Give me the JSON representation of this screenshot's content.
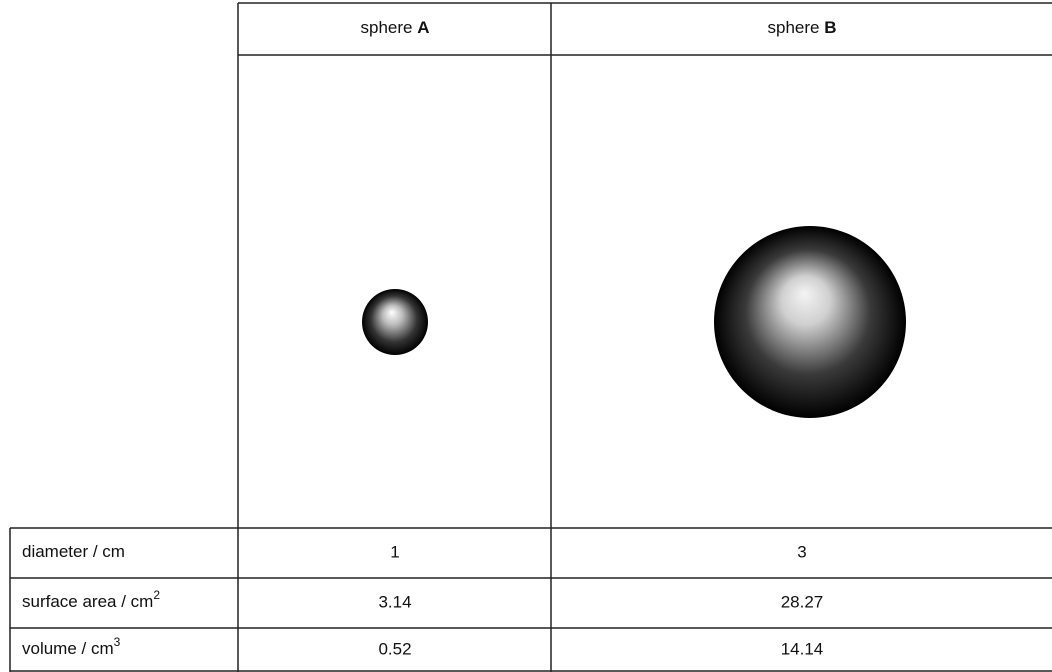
{
  "table": {
    "header": [
      {
        "prefix": "sphere ",
        "letter": "A"
      },
      {
        "prefix": "sphere ",
        "letter": "B"
      }
    ],
    "rows": [
      [
        {
          "text": "diameter / cm"
        },
        "1",
        "3"
      ],
      [
        {
          "text": "surface area / cm",
          "sup": "2"
        },
        "3.14",
        "28.27"
      ],
      [
        {
          "text": "volume / cm",
          "sup": "3"
        },
        "0.52",
        "14.14"
      ]
    ]
  }
}
